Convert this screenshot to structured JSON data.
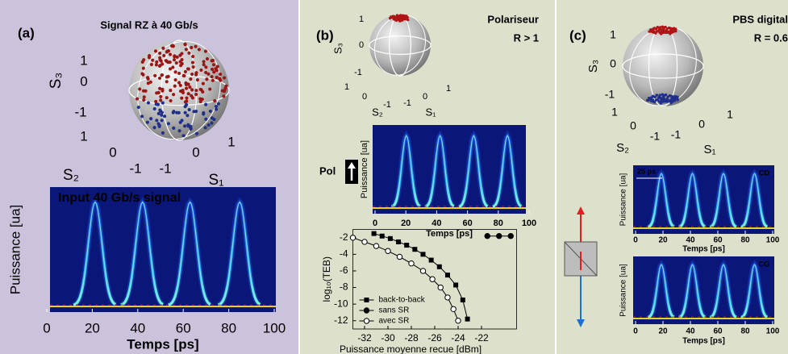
{
  "panels": {
    "a": {
      "label": "(a)",
      "title": "Signal RZ à 40 Gb/s",
      "sphere": {
        "s3_label": "S₃",
        "s3_ticks": [
          1,
          0,
          -1
        ],
        "s2_label": "S₂",
        "s2_ticks": [
          1,
          0,
          -1
        ],
        "s1_label": "S₁",
        "s1_ticks": [
          -1,
          0,
          1
        ]
      }
    },
    "b": {
      "label": "(b)",
      "title": "Polariseur",
      "subtitle": "R > 1",
      "pol_label": "Pol",
      "sphere": {
        "s3_label": "S₃",
        "s3_ticks": [
          1,
          0,
          -1
        ],
        "s2_label": "S₂",
        "s2_ticks": [
          1,
          0,
          -1
        ],
        "s1_label": "S₁",
        "s1_ticks": [
          -1,
          0,
          1
        ]
      }
    },
    "c": {
      "label": "(c)",
      "title": "PBS digital",
      "subtitle": "R = 0.6",
      "sphere": {
        "s3_label": "S₃",
        "s3_ticks": [
          1,
          0,
          -1
        ],
        "s2_label": "S₂",
        "s2_ticks": [
          1,
          0,
          -1
        ],
        "s1_label": "S₁",
        "s1_ticks": [
          -1,
          0,
          1
        ]
      }
    }
  },
  "chart_data": [
    {
      "type": "eye",
      "annotation": "Input 40 Gb/s signal",
      "xlabel": "Temps [ps]",
      "ylabel": "Puissance [ua]",
      "xlim": [
        0,
        100
      ],
      "xticks": [
        0,
        20,
        40,
        60,
        80,
        100
      ]
    },
    {
      "type": "eye",
      "xlabel": "Temps [ps]",
      "ylabel": "Puissance [ua]",
      "xlim": [
        0,
        100
      ],
      "xticks": [
        0,
        20,
        40,
        60,
        80,
        100
      ]
    },
    {
      "type": "line",
      "xlabel": "Puissance moyenne recue [dBm]",
      "ylabel": "log₁₀(TEB)",
      "xlim": [
        -33,
        -19
      ],
      "xticks": [
        -32,
        -30,
        -28,
        -26,
        -24,
        -22
      ],
      "ylim": [
        -13,
        -1
      ],
      "yticks": [
        -2,
        -4,
        -6,
        -8,
        -10,
        -12
      ],
      "legend": "lower left",
      "series": [
        {
          "name": "back-to-back",
          "color": "#000000",
          "marker": "square",
          "x": [
            -31.2,
            -30.5,
            -29.8,
            -29.1,
            -28.4,
            -27.7,
            -27.0,
            -26.3,
            -25.6,
            -24.9,
            -24.2,
            -23.6,
            -23.2
          ],
          "values": [
            -1.5,
            -1.8,
            -2.1,
            -2.5,
            -2.9,
            -3.4,
            -4.0,
            -4.7,
            -5.5,
            -6.5,
            -7.7,
            -9.5,
            -11.8
          ]
        },
        {
          "name": "sans SR",
          "color": "#000000",
          "marker": "circle",
          "x": [
            -21.5,
            -20.5,
            -19.5
          ],
          "values": [
            -1.8,
            -1.8,
            -1.8
          ]
        },
        {
          "name": "avec SR",
          "color": "#000000",
          "marker": "circle-open",
          "x": [
            -33,
            -32,
            -31,
            -30,
            -29,
            -28,
            -27,
            -26.2,
            -25.5,
            -24.9,
            -24.4,
            -24.0
          ],
          "values": [
            -2,
            -2.5,
            -3.0,
            -3.6,
            -4.3,
            -5.1,
            -6.0,
            -7.0,
            -8.0,
            -9.2,
            -10.6,
            -12
          ]
        }
      ]
    },
    {
      "type": "eye",
      "annotation": "25 ps",
      "tag": "CD",
      "xlabel": "Temps [ps]",
      "ylabel": "Puissance [ua]",
      "xlim": [
        0,
        100
      ],
      "xticks": [
        0,
        20,
        40,
        60,
        80,
        100
      ]
    },
    {
      "type": "eye",
      "tag": "CG",
      "xlabel": "Temps [ps]",
      "ylabel": "Puissance [ua]",
      "xlim": [
        0,
        100
      ],
      "xticks": [
        0,
        20,
        40,
        60,
        80,
        100
      ]
    }
  ]
}
